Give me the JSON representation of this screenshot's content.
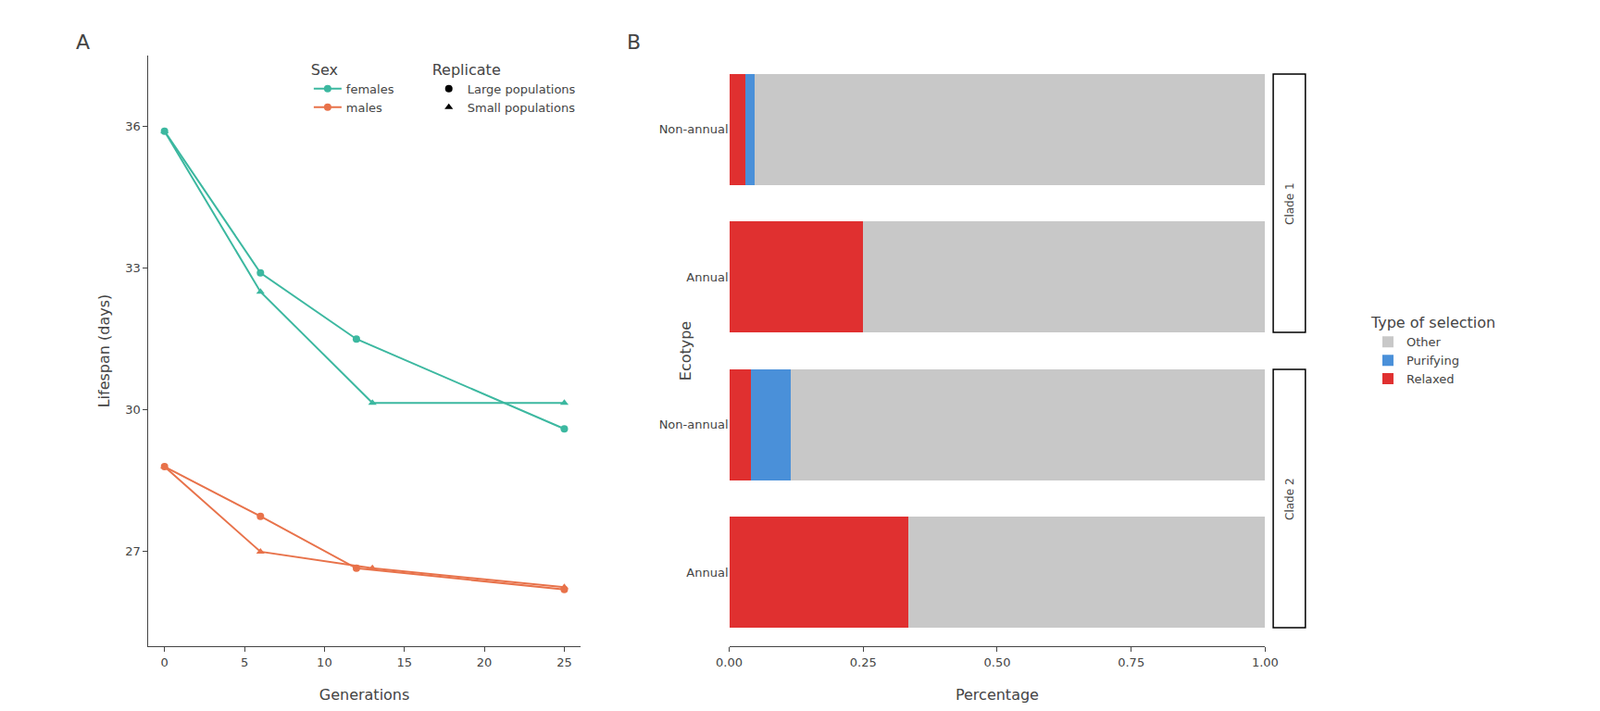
{
  "chart_data": [
    {
      "type": "line",
      "xlabel": "Generations",
      "ylabel": "Lifespan (days)",
      "xlim": [
        -1,
        26
      ],
      "xticks": [
        0,
        5,
        10,
        15,
        20,
        25
      ],
      "ylim": [
        25.0,
        37.5
      ],
      "yticks": [
        27,
        30,
        33,
        36
      ],
      "grid": false,
      "legend": "upper right",
      "annotations": [
        "A"
      ],
      "series": [
        {
          "color": "#3cb8a0",
          "marker": "circle",
          "x": [
            0,
            6,
            12,
            25
          ],
          "values": [
            35.9,
            32.9,
            31.5,
            29.6
          ]
        },
        {
          "color": "#3cb8a0",
          "marker": "triangle-up",
          "x": [
            0,
            6,
            13,
            25
          ],
          "values": [
            35.9,
            32.5,
            30.15,
            30.15
          ]
        },
        {
          "color": "#e8724a",
          "marker": "circle",
          "x": [
            0,
            6,
            12,
            25
          ],
          "values": [
            28.8,
            27.75,
            26.65,
            26.2
          ]
        },
        {
          "color": "#e8724a",
          "marker": "triangle-up",
          "x": [
            0,
            6,
            13,
            25
          ],
          "values": [
            28.8,
            27.0,
            26.65,
            26.25
          ]
        }
      ],
      "legend_groups": [
        {
          "title": "Replicate",
          "items": [
            {
              "name": "Large populations",
              "marker": "circle"
            },
            {
              "name": "Small populations",
              "marker": "triangle-up"
            }
          ]
        },
        {
          "title": "Sex",
          "items": [
            {
              "name": "females",
              "color": "#3cb8a0"
            },
            {
              "name": "males",
              "color": "#e8724a"
            }
          ]
        }
      ]
    },
    {
      "type": "bar",
      "orientation": "horizontal",
      "stacked": true,
      "xlabel": "Percentage",
      "ylabel": "Ecotype",
      "xlim": [
        0.0,
        1.0
      ],
      "xticks": [
        {
          "value": 0.0,
          "label": "0.00"
        },
        0.25,
        {
          "value": 0.5,
          "label": "0.50"
        },
        0.75,
        {
          "value": 1.0,
          "label": "1.00"
        }
      ],
      "grid": false,
      "legend": "right",
      "legend_title": "Type of selection",
      "annotations": [
        "B"
      ],
      "categories": [
        "Non-annual",
        "Annual",
        "Non-annual",
        "Annual"
      ],
      "series": [
        {
          "name": "Relaxed",
          "color": "#e03030",
          "values": [
            0.03,
            0.25,
            0.04,
            0.335
          ]
        },
        {
          "name": "Purifying",
          "color": "#4a90d9",
          "values": [
            0.018,
            0.0,
            0.075,
            0.0
          ]
        },
        {
          "name": "Other",
          "color": "#c8c8c8",
          "values": [
            0.952,
            0.75,
            0.885,
            0.665
          ]
        }
      ],
      "groups": [
        {
          "label": "Clade 1",
          "categories": [
            0,
            1
          ]
        },
        {
          "label": "Clade 2",
          "categories": [
            2,
            3
          ]
        }
      ]
    }
  ]
}
